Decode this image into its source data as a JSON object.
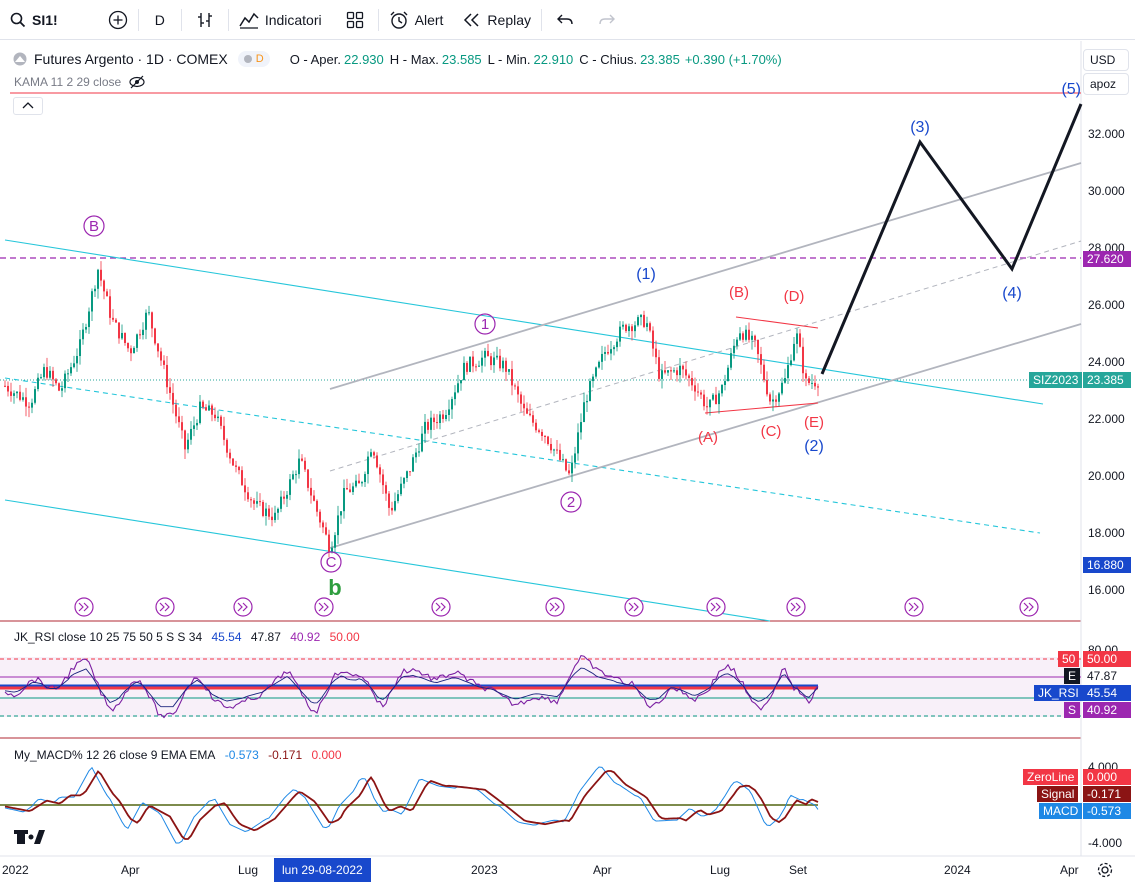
{
  "toolbar": {
    "symbol": "SI1!",
    "interval": "D",
    "indicators_label": "Indicatori",
    "alert_label": "Alert",
    "replay_label": "Replay"
  },
  "legend": {
    "title": "Futures Argento · 1D · COMEX",
    "badge": "D",
    "open_label": "O - Aper.",
    "open": "22.930",
    "high_label": "H - Max.",
    "high": "23.585",
    "low_label": "L - Min.",
    "low": "22.910",
    "close_label": "C - Chius.",
    "close": "23.385",
    "change": "+0.390 (+1.70%)",
    "kama": "KAMA 11 2 29 close"
  },
  "axis_buttons": {
    "currency": "USD",
    "scale": "apoz"
  },
  "price_axis": {
    "ticks": [
      "32.000",
      "30.000",
      "28.000",
      "26.000",
      "24.000",
      "22.000",
      "20.000",
      "18.000",
      "16.000"
    ],
    "tags": {
      "resistance": "27.620",
      "symbol_name": "SIZ2023",
      "last": "23.385",
      "support": "16.880"
    }
  },
  "time_axis": {
    "labels": [
      "2022",
      "Apr",
      "Lug",
      "2023",
      "Apr",
      "Lug",
      "Set",
      "2024",
      "Apr"
    ],
    "cursor_label": "lun 29-08-2022"
  },
  "wave_labels": {
    "B_big": "B",
    "C_big": "C",
    "b_green": "b",
    "w1": "1",
    "w2": "2",
    "W1": "(1)",
    "W2": "(2)",
    "W3": "(3)",
    "W4": "(4)",
    "W5": "(5)",
    "A": "(A)",
    "B": "(B)",
    "C": "(C)",
    "D": "(D)",
    "E": "(E)"
  },
  "rsi": {
    "legend_name": "JK_RSI close 10 25 75 50 5 S S 34",
    "v1": "45.54",
    "v2": "47.87",
    "v3": "40.92",
    "v4": "50.00",
    "tags": {
      "fifty_label": "50",
      "fifty_val": "50.00",
      "e_label": "E",
      "e_val": "47.87",
      "rsi_label": "JK_RSI",
      "rsi_val": "45.54",
      "s_label": "S",
      "s_val": "40.92"
    },
    "axis_tick": "80.00"
  },
  "macd": {
    "legend_name": "My_MACD% 12 26 close 9 EMA EMA",
    "v1": "-0.573",
    "v2": "-0.171",
    "v3": "0.000",
    "ticks": [
      "4.000",
      "-4.000"
    ],
    "tags": {
      "zero_label": "ZeroLine",
      "zero_val": "0.000",
      "signal_label": "Signal",
      "signal_val": "-0.171",
      "macd_label": "MACD",
      "macd_val": "-0.573"
    }
  },
  "colors": {
    "up": "#089981",
    "down": "#f23645",
    "channel": "#b2b5be",
    "teal": "#26c6da",
    "wave_purple": "#9c27b0",
    "wave_blue": "#1848cc",
    "wave_red": "#f23645",
    "green_b": "#2e9e3e"
  }
}
